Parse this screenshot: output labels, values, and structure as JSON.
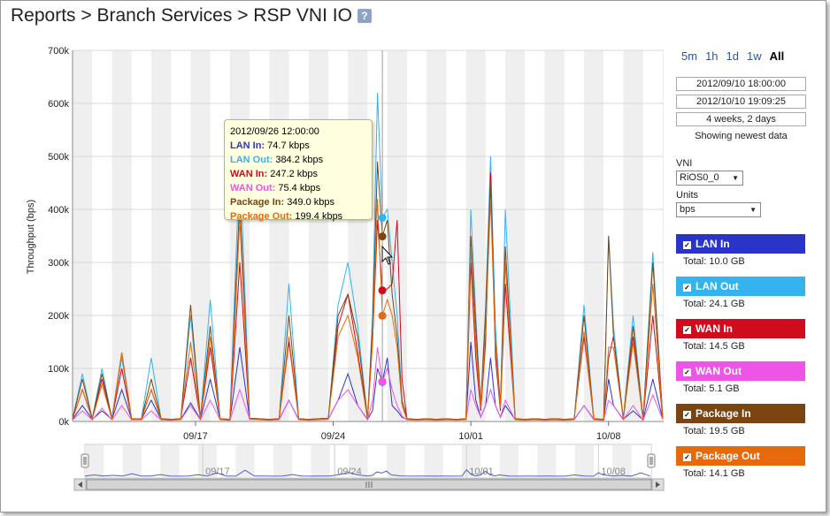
{
  "page": {
    "title": "Reports > Branch Services > RSP VNI IO",
    "help_label": "?"
  },
  "time_ranges": [
    "5m",
    "1h",
    "1d",
    "1w",
    "All"
  ],
  "time_range_selected": "All",
  "date_range": {
    "start": "2012/09/10 18:00:00",
    "end": "2012/10/10 19:09:25",
    "duration": "4 weeks, 2 days",
    "status": "Showing newest data"
  },
  "vni": {
    "label": "VNI",
    "value": "RiOS0_0"
  },
  "units": {
    "label": "Units",
    "value": "bps"
  },
  "legend": [
    {
      "name": "LAN In",
      "total": "Total: 10.0 GB",
      "color": "#2a35c7"
    },
    {
      "name": "LAN Out",
      "total": "Total: 24.1 GB",
      "color": "#35b3f0"
    },
    {
      "name": "WAN In",
      "total": "Total: 14.5 GB",
      "color": "#cf0b1c"
    },
    {
      "name": "WAN Out",
      "total": "Total: 5.1 GB",
      "color": "#ee55e6"
    },
    {
      "name": "Package In",
      "total": "Total: 19.5 GB",
      "color": "#7a4510"
    },
    {
      "name": "Package Out",
      "total": "Total: 14.1 GB",
      "color": "#e66a0c"
    }
  ],
  "tooltip": {
    "timestamp": "2012/09/26 12:00:00",
    "rows": [
      {
        "label": "LAN In:",
        "value": "74.7 kbps",
        "color": "#2a35c7"
      },
      {
        "label": "LAN Out:",
        "value": "384.2 kbps",
        "color": "#35b3f0"
      },
      {
        "label": "WAN In:",
        "value": "247.2 kbps",
        "color": "#cf0b1c"
      },
      {
        "label": "WAN Out:",
        "value": "75.4 kbps",
        "color": "#ee55e6"
      },
      {
        "label": "Package In:",
        "value": "349.0 kbps",
        "color": "#7a4510"
      },
      {
        "label": "Package Out:",
        "value": "199.4 kbps",
        "color": "#e66a0c"
      }
    ]
  },
  "chart_data": {
    "type": "line",
    "ylabel": "Throughput (bps)",
    "y_ticks": [
      "0k",
      "100k",
      "200k",
      "300k",
      "400k",
      "500k",
      "600k",
      "700k"
    ],
    "ylim": [
      0,
      700000
    ],
    "x_ticks": [
      "09/17",
      "09/24",
      "10/01",
      "10/08"
    ],
    "x_tick_days": [
      6.25,
      13.25,
      20.25,
      27.25
    ],
    "xlim_days": [
      0,
      30.05
    ],
    "hover_day": 15.75,
    "navigator_ticks": [
      "09/17",
      "09/24",
      "10/01",
      "10/08"
    ],
    "series": [
      {
        "name": "LAN In",
        "color": "#2a35c7",
        "x": [
          0,
          0.5,
          1,
          1.5,
          2,
          2.5,
          3,
          3.5,
          4,
          4.5,
          5,
          5.5,
          6,
          6.5,
          7,
          7.5,
          8,
          8.5,
          9,
          9.5,
          10,
          10.5,
          11,
          11.5,
          12,
          12.5,
          13,
          13.5,
          14,
          14.5,
          15,
          15.25,
          15.5,
          15.75,
          16,
          16.25,
          16.5,
          16.75,
          17,
          17.5,
          18,
          18.5,
          19,
          19.5,
          20,
          20.25,
          20.5,
          20.75,
          21,
          21.25,
          21.5,
          21.75,
          22,
          22.5,
          23,
          23.5,
          24,
          24.5,
          25,
          25.5,
          26,
          26.5,
          27,
          27.25,
          27.5,
          28,
          28.5,
          29,
          29.5,
          30
        ],
        "y": [
          4000,
          30000,
          4000,
          20000,
          4000,
          60000,
          5000,
          4000,
          40000,
          4000,
          3000,
          4000,
          35000,
          4000,
          80000,
          4000,
          3000,
          140000,
          5000,
          4000,
          3000,
          4000,
          40000,
          4000,
          3000,
          4000,
          5000,
          40000,
          90000,
          30000,
          4000,
          20000,
          100000,
          74700,
          120000,
          30000,
          20000,
          8000,
          4000,
          3000,
          4000,
          3000,
          4000,
          3000,
          4000,
          150000,
          40000,
          8000,
          30000,
          120000,
          30000,
          8000,
          30000,
          4000,
          3000,
          4000,
          3000,
          4000,
          3000,
          4000,
          30000,
          4000,
          3000,
          80000,
          30000,
          4000,
          20000,
          3000,
          80000,
          5000
        ]
      },
      {
        "name": "LAN Out",
        "color": "#35b3f0",
        "x": [
          0,
          0.5,
          1,
          1.5,
          2,
          2.5,
          3,
          3.5,
          4,
          4.5,
          5,
          5.5,
          6,
          6.5,
          7,
          7.5,
          8,
          8.5,
          9,
          9.5,
          10,
          10.5,
          11,
          11.5,
          12,
          12.5,
          13,
          13.5,
          14,
          14.5,
          15,
          15.25,
          15.5,
          15.75,
          16,
          16.25,
          16.5,
          16.75,
          17,
          17.5,
          18,
          18.5,
          19,
          19.5,
          20,
          20.25,
          20.5,
          20.75,
          21,
          21.25,
          21.5,
          21.75,
          22,
          22.5,
          23,
          23.5,
          24,
          24.5,
          25,
          25.5,
          26,
          26.5,
          27,
          27.25,
          27.5,
          28,
          28.5,
          29,
          29.5,
          30
        ],
        "y": [
          5000,
          90000,
          5000,
          100000,
          5000,
          120000,
          5000,
          5000,
          120000,
          5000,
          4000,
          5000,
          200000,
          5000,
          230000,
          5000,
          4000,
          500000,
          6000,
          5000,
          4000,
          5000,
          260000,
          5000,
          4000,
          5000,
          6000,
          220000,
          300000,
          180000,
          5000,
          200000,
          620000,
          384200,
          400000,
          300000,
          200000,
          40000,
          5000,
          4000,
          5000,
          4000,
          5000,
          4000,
          5000,
          400000,
          200000,
          30000,
          220000,
          500000,
          180000,
          30000,
          400000,
          5000,
          4000,
          5000,
          4000,
          5000,
          4000,
          5000,
          220000,
          5000,
          4000,
          350000,
          180000,
          5000,
          200000,
          4000,
          320000,
          8000
        ]
      },
      {
        "name": "WAN In",
        "color": "#cf0b1c",
        "x": [
          0,
          0.5,
          1,
          1.5,
          2,
          2.5,
          3,
          3.5,
          4,
          4.5,
          5,
          5.5,
          6,
          6.5,
          7,
          7.5,
          8,
          8.5,
          9,
          9.5,
          10,
          10.5,
          11,
          11.5,
          12,
          12.5,
          13,
          13.5,
          14,
          14.5,
          15,
          15.25,
          15.5,
          15.75,
          16,
          16.25,
          16.5,
          16.75,
          17,
          17.5,
          18,
          18.5,
          19,
          19.5,
          20,
          20.25,
          20.5,
          20.75,
          21,
          21.25,
          21.5,
          21.75,
          22,
          22.5,
          23,
          23.5,
          24,
          24.5,
          25,
          25.5,
          26,
          26.5,
          27,
          27.25,
          27.5,
          28,
          28.5,
          29,
          29.5,
          30
        ],
        "y": [
          5000,
          60000,
          5000,
          80000,
          5000,
          100000,
          5000,
          5000,
          60000,
          5000,
          4000,
          5000,
          120000,
          5000,
          140000,
          5000,
          4000,
          300000,
          6000,
          5000,
          4000,
          5000,
          150000,
          5000,
          4000,
          5000,
          6000,
          180000,
          240000,
          130000,
          5000,
          150000,
          380000,
          247200,
          250000,
          260000,
          380000,
          80000,
          5000,
          4000,
          5000,
          4000,
          5000,
          4000,
          5000,
          300000,
          120000,
          20000,
          150000,
          470000,
          120000,
          20000,
          260000,
          5000,
          4000,
          5000,
          4000,
          5000,
          4000,
          5000,
          160000,
          5000,
          4000,
          120000,
          160000,
          5000,
          160000,
          4000,
          200000,
          6000
        ]
      },
      {
        "name": "WAN Out",
        "color": "#ee55e6",
        "x": [
          0,
          0.5,
          1,
          1.5,
          2,
          2.5,
          3,
          3.5,
          4,
          4.5,
          5,
          5.5,
          6,
          6.5,
          7,
          7.5,
          8,
          8.5,
          9,
          9.5,
          10,
          10.5,
          11,
          11.5,
          12,
          12.5,
          13,
          13.5,
          14,
          14.5,
          15,
          15.25,
          15.5,
          15.75,
          16,
          16.25,
          16.5,
          16.75,
          17,
          17.5,
          18,
          18.5,
          19,
          19.5,
          20,
          20.25,
          20.5,
          20.75,
          21,
          21.25,
          21.5,
          21.75,
          22,
          22.5,
          23,
          23.5,
          24,
          24.5,
          25,
          25.5,
          26,
          26.5,
          27,
          27.25,
          27.5,
          28,
          28.5,
          29,
          29.5,
          30
        ],
        "y": [
          3000,
          20000,
          3000,
          25000,
          3000,
          30000,
          3000,
          3000,
          20000,
          3000,
          2000,
          3000,
          30000,
          3000,
          40000,
          3000,
          2000,
          60000,
          4000,
          3000,
          2000,
          3000,
          40000,
          3000,
          2000,
          3000,
          4000,
          40000,
          60000,
          30000,
          3000,
          40000,
          140000,
          75400,
          100000,
          60000,
          30000,
          10000,
          3000,
          2000,
          3000,
          2000,
          3000,
          2000,
          3000,
          60000,
          30000,
          8000,
          30000,
          60000,
          30000,
          8000,
          40000,
          3000,
          2000,
          3000,
          2000,
          3000,
          2000,
          3000,
          30000,
          3000,
          2000,
          40000,
          30000,
          3000,
          30000,
          2000,
          50000,
          4000
        ]
      },
      {
        "name": "Package In",
        "color": "#7a4510",
        "x": [
          0,
          0.5,
          1,
          1.5,
          2,
          2.5,
          3,
          3.5,
          4,
          4.5,
          5,
          5.5,
          6,
          6.5,
          7,
          7.5,
          8,
          8.5,
          9,
          9.5,
          10,
          10.5,
          11,
          11.5,
          12,
          12.5,
          13,
          13.5,
          14,
          14.5,
          15,
          15.25,
          15.5,
          15.75,
          16,
          16.25,
          16.5,
          16.75,
          17,
          17.5,
          18,
          18.5,
          19,
          19.5,
          20,
          20.25,
          20.5,
          20.75,
          21,
          21.25,
          21.5,
          21.75,
          22,
          22.5,
          23,
          23.5,
          24,
          24.5,
          25,
          25.5,
          26,
          26.5,
          27,
          27.25,
          27.5,
          28,
          28.5,
          29,
          29.5,
          30
        ],
        "y": [
          5000,
          80000,
          5000,
          90000,
          5000,
          130000,
          5000,
          5000,
          80000,
          5000,
          4000,
          5000,
          220000,
          5000,
          180000,
          5000,
          4000,
          420000,
          6000,
          5000,
          4000,
          5000,
          200000,
          5000,
          4000,
          5000,
          6000,
          200000,
          240000,
          160000,
          5000,
          180000,
          490000,
          349000,
          380000,
          240000,
          160000,
          40000,
          5000,
          4000,
          5000,
          4000,
          5000,
          4000,
          5000,
          350000,
          180000,
          30000,
          200000,
          450000,
          150000,
          30000,
          330000,
          5000,
          4000,
          5000,
          4000,
          5000,
          4000,
          5000,
          200000,
          5000,
          4000,
          350000,
          160000,
          5000,
          180000,
          4000,
          300000,
          8000
        ]
      },
      {
        "name": "Package Out",
        "color": "#e66a0c",
        "x": [
          0,
          0.5,
          1,
          1.5,
          2,
          2.5,
          3,
          3.5,
          4,
          4.5,
          5,
          5.5,
          6,
          6.5,
          7,
          7.5,
          8,
          8.5,
          9,
          9.5,
          10,
          10.5,
          11,
          11.5,
          12,
          12.5,
          13,
          13.5,
          14,
          14.5,
          15,
          15.25,
          15.5,
          15.75,
          16,
          16.25,
          16.5,
          16.75,
          17,
          17.5,
          18,
          18.5,
          19,
          19.5,
          20,
          20.25,
          20.5,
          20.75,
          21,
          21.25,
          21.5,
          21.75,
          22,
          22.5,
          23,
          23.5,
          24,
          24.5,
          25,
          25.5,
          26,
          26.5,
          27,
          27.25,
          27.5,
          28,
          28.5,
          29,
          29.5,
          30
        ],
        "y": [
          4000,
          60000,
          4000,
          70000,
          4000,
          130000,
          4000,
          4000,
          60000,
          4000,
          3000,
          4000,
          150000,
          4000,
          160000,
          4000,
          3000,
          380000,
          5000,
          4000,
          3000,
          4000,
          160000,
          4000,
          3000,
          4000,
          5000,
          160000,
          200000,
          120000,
          4000,
          150000,
          420000,
          199400,
          230000,
          200000,
          140000,
          30000,
          4000,
          3000,
          4000,
          3000,
          4000,
          3000,
          4000,
          330000,
          150000,
          25000,
          170000,
          420000,
          140000,
          25000,
          300000,
          4000,
          3000,
          4000,
          3000,
          4000,
          3000,
          4000,
          170000,
          4000,
          3000,
          140000,
          140000,
          4000,
          150000,
          3000,
          260000,
          6000
        ]
      }
    ]
  }
}
